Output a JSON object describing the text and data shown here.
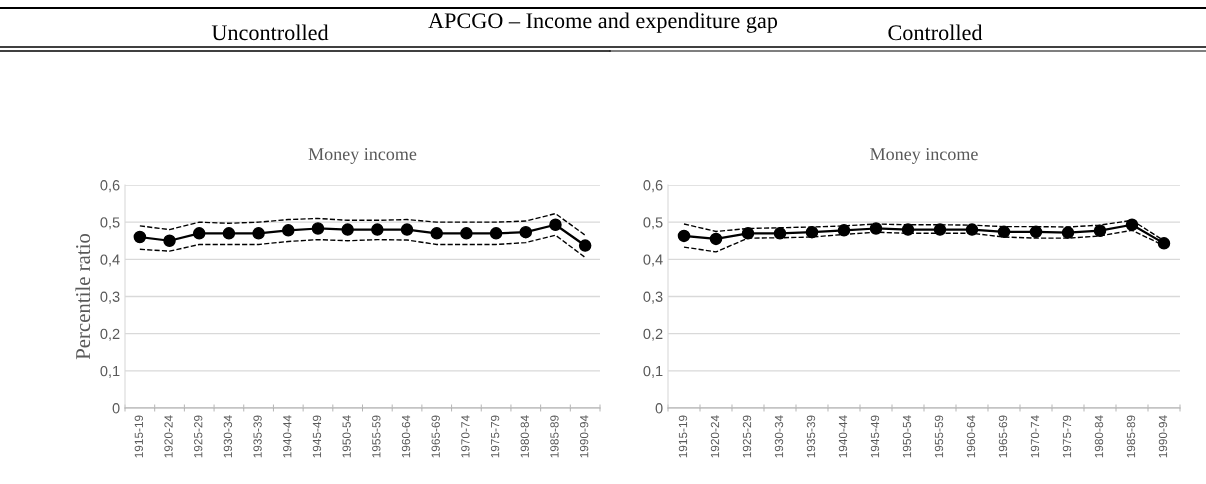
{
  "chart_data": [
    {
      "type": "line",
      "title": "Money income",
      "subtitle": "Uncontrolled",
      "ylabel": "Percentile ratio",
      "annotations": [
        "APCGO – Income and expenditure gap"
      ],
      "categories": [
        "1915-19",
        "1920-24",
        "1925-29",
        "1930-34",
        "1935-39",
        "1940-44",
        "1945-49",
        "1950-54",
        "1955-59",
        "1960-64",
        "1965-69",
        "1970-74",
        "1975-79",
        "1980-84",
        "1985-89",
        "1990-94"
      ],
      "series": [
        {
          "color": "#000000",
          "marker": "circle",
          "line_style": "solid",
          "values": [
            0.46,
            0.45,
            0.47,
            0.47,
            0.47,
            0.478,
            0.483,
            0.48,
            0.48,
            0.48,
            0.47,
            0.47,
            0.47,
            0.473,
            0.493,
            0.437
          ]
        },
        {
          "color": "#000000",
          "marker": "none",
          "line_style": "dashed",
          "values": [
            0.49,
            0.48,
            0.5,
            0.497,
            0.5,
            0.507,
            0.51,
            0.505,
            0.505,
            0.507,
            0.5,
            0.5,
            0.5,
            0.503,
            0.523,
            0.465
          ]
        },
        {
          "color": "#000000",
          "marker": "none",
          "line_style": "dashed",
          "values": [
            0.427,
            0.422,
            0.44,
            0.44,
            0.44,
            0.448,
            0.453,
            0.45,
            0.453,
            0.452,
            0.44,
            0.44,
            0.44,
            0.445,
            0.465,
            0.405
          ]
        }
      ],
      "ylim": [
        0,
        0.6
      ],
      "yticks": [
        0,
        {
          "value": 0.1,
          "label": "0,1"
        },
        {
          "value": 0.2,
          "label": "0,2"
        },
        {
          "value": 0.3,
          "label": "0,3"
        },
        {
          "value": 0.4,
          "label": "0,4"
        },
        {
          "value": 0.5,
          "label": "0,5"
        },
        {
          "value": 0.6,
          "label": "0,6"
        }
      ],
      "grid": "y"
    },
    {
      "type": "line",
      "title": "Money income",
      "subtitle": "Controlled",
      "categories": [
        "1915-19",
        "1920-24",
        "1925-29",
        "1930-34",
        "1935-39",
        "1940-44",
        "1945-49",
        "1950-54",
        "1955-59",
        "1960-64",
        "1965-69",
        "1970-74",
        "1975-79",
        "1980-84",
        "1985-89",
        "1990-94"
      ],
      "series": [
        {
          "color": "#000000",
          "marker": "circle",
          "line_style": "solid",
          "values": [
            0.463,
            0.455,
            0.47,
            0.47,
            0.473,
            0.478,
            0.483,
            0.48,
            0.48,
            0.48,
            0.474,
            0.474,
            0.472,
            0.477,
            0.493,
            0.443
          ]
        },
        {
          "color": "#000000",
          "marker": "none",
          "line_style": "dashed",
          "values": [
            0.495,
            0.475,
            0.483,
            0.485,
            0.487,
            0.49,
            0.495,
            0.493,
            0.493,
            0.492,
            0.488,
            0.488,
            0.487,
            0.492,
            0.505,
            0.45
          ]
        },
        {
          "color": "#000000",
          "marker": "none",
          "line_style": "dashed",
          "values": [
            0.433,
            0.42,
            0.457,
            0.458,
            0.46,
            0.467,
            0.473,
            0.47,
            0.47,
            0.47,
            0.46,
            0.457,
            0.457,
            0.463,
            0.478,
            0.437
          ]
        }
      ],
      "ylim": [
        0,
        0.6
      ],
      "yticks": [
        0,
        {
          "value": 0.1,
          "label": "0,1"
        },
        {
          "value": 0.2,
          "label": "0,2"
        },
        {
          "value": 0.3,
          "label": "0,3"
        },
        {
          "value": 0.4,
          "label": "0,4"
        },
        {
          "value": 0.5,
          "label": "0,5"
        },
        {
          "value": 0.6,
          "label": "0,6"
        }
      ],
      "grid": "y"
    }
  ]
}
